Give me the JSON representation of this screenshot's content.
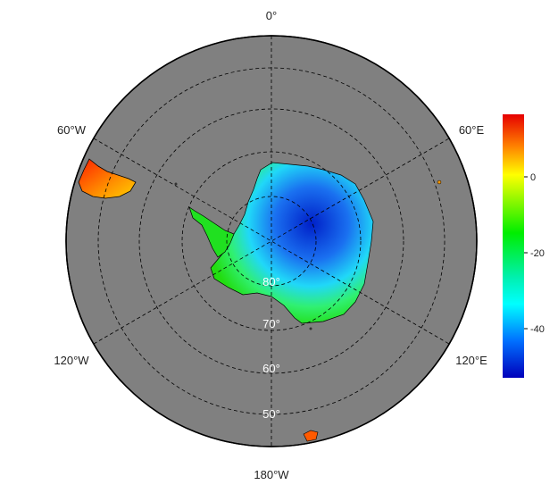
{
  "map": {
    "projection": "south-polar-stereographic",
    "ocean_color": "#808080",
    "longitude_labels": {
      "top": "0°",
      "upper_left": "60°W",
      "upper_right": "60°E",
      "lower_left": "120°W",
      "lower_right": "120°E",
      "bottom": "180°W"
    },
    "latitude_labels": [
      "80°",
      "70°",
      "60°",
      "50°"
    ],
    "graticule": "dashed"
  },
  "colorbar": {
    "ticks": [
      "0",
      "-20",
      "-40"
    ],
    "range": [
      -53,
      16
    ],
    "colors": [
      "#e60000",
      "#ff7700",
      "#ffff00",
      "#00ee00",
      "#00ffff",
      "#0050ff",
      "#0000bb"
    ]
  }
}
